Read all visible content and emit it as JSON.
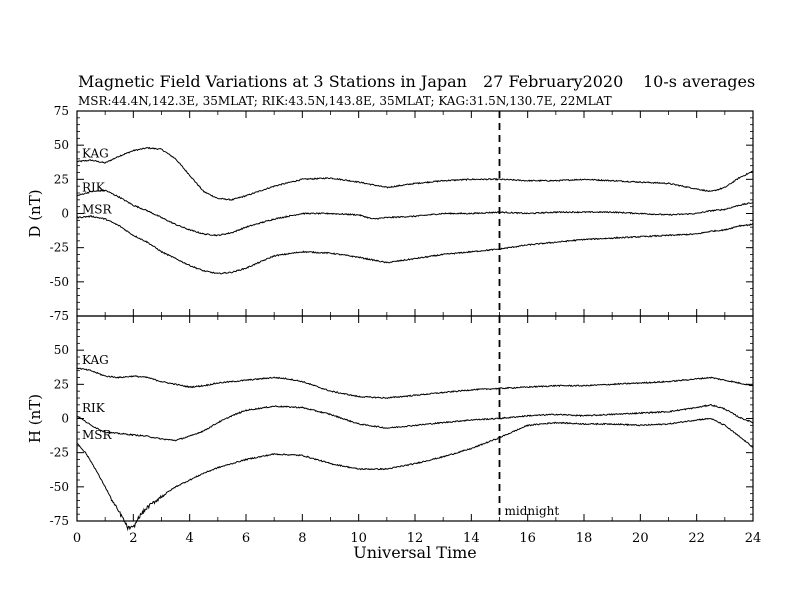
{
  "chart_data": {
    "type": "line",
    "title": "Magnetic Field Variations at 3 Stations in Japan",
    "date": "27 February2020",
    "averaging": "10-s averages",
    "subtitle": "MSR:44.4N,142.3E, 35MLAT;  RIK:43.5N,143.8E, 35MLAT;  KAG:31.5N,130.7E, 22MLAT",
    "xlabel": "Universal Time",
    "xlim": [
      0,
      24
    ],
    "x_ticks": [
      0,
      2,
      4,
      6,
      8,
      10,
      12,
      14,
      16,
      18,
      20,
      22,
      24
    ],
    "grid": false,
    "annotation": {
      "x": 15,
      "label": "midnight",
      "style": "dashed vertical line"
    },
    "panels": [
      {
        "name": "D",
        "ylabel": "D (nT)",
        "ylim": [
          -75,
          75
        ],
        "y_ticks": [
          75,
          50,
          25,
          0,
          -25,
          -50,
          -75
        ],
        "series": [
          {
            "name": "KAG",
            "x": [
              0,
              0.5,
              1,
              1.5,
              2,
              2.5,
              3,
              3.5,
              4,
              4.5,
              5,
              5.5,
              6,
              7,
              8,
              9,
              10,
              11,
              12,
              13,
              14,
              15,
              16,
              17,
              18,
              19,
              20,
              21,
              22,
              22.5,
              23,
              23.5,
              24
            ],
            "values": [
              38,
              39,
              37,
              42,
              46,
              48,
              47,
              40,
              28,
              16,
              11,
              10,
              13,
              20,
              25,
              26,
              23,
              19,
              22,
              24,
              25,
              25,
              24,
              24,
              25,
              24,
              23,
              22,
              18,
              16,
              19,
              26,
              31
            ]
          },
          {
            "name": "RIK",
            "x": [
              0,
              0.5,
              1,
              1.5,
              2,
              2.5,
              3,
              3.5,
              4,
              4.5,
              5,
              5.5,
              6,
              7,
              8,
              9,
              10,
              10.5,
              11,
              12,
              13,
              14,
              15,
              16,
              17,
              18,
              19,
              20,
              21,
              22,
              22.5,
              23,
              23.5,
              24
            ],
            "values": [
              13,
              16,
              17,
              12,
              6,
              2,
              -3,
              -8,
              -12,
              -15,
              -16,
              -14,
              -10,
              -4,
              0,
              0,
              -1,
              -4,
              -3,
              -2,
              0,
              0,
              1,
              0,
              1,
              1,
              1,
              0,
              -1,
              0,
              2,
              3,
              6,
              8
            ]
          },
          {
            "name": "MSR",
            "x": [
              0,
              0.5,
              1,
              1.5,
              2,
              2.5,
              3,
              3.5,
              4,
              4.5,
              5,
              5.5,
              6,
              7,
              8,
              9,
              10,
              10.5,
              11,
              12,
              13,
              14,
              15,
              16,
              17,
              18,
              19,
              20,
              21,
              22,
              22.5,
              23,
              23.5,
              24
            ],
            "values": [
              -3,
              -2,
              -4,
              -9,
              -16,
              -21,
              -28,
              -33,
              -38,
              -42,
              -44,
              -43,
              -40,
              -31,
              -28,
              -29,
              -32,
              -34,
              -36,
              -33,
              -30,
              -28,
              -26,
              -23,
              -21,
              -19,
              -18,
              -17,
              -16,
              -15,
              -13,
              -12,
              -9,
              -8
            ]
          }
        ]
      },
      {
        "name": "H",
        "ylabel": "H (nT)",
        "ylim": [
          -75,
          75
        ],
        "y_ticks": [
          75,
          50,
          25,
          0,
          -25,
          -50,
          -75
        ],
        "series": [
          {
            "name": "KAG",
            "x": [
              0,
              0.5,
              1,
              1.5,
              2,
              2.5,
              3,
              3.5,
              4,
              4.5,
              5,
              6,
              7,
              7.5,
              8,
              9,
              10,
              11,
              12,
              13,
              14,
              15,
              16,
              17,
              18,
              19,
              20,
              21,
              22,
              22.5,
              23,
              23.5,
              24
            ],
            "values": [
              37,
              35,
              31,
              30,
              31,
              30,
              27,
              25,
              23,
              24,
              26,
              28,
              30,
              29,
              27,
              20,
              16,
              15,
              17,
              19,
              21,
              22,
              23,
              24,
              24,
              25,
              26,
              27,
              29,
              30,
              28,
              26,
              24
            ]
          },
          {
            "name": "RIK",
            "x": [
              0,
              0.5,
              1,
              1.5,
              2,
              2.5,
              3,
              3.5,
              4,
              4.5,
              5,
              5.5,
              6,
              7,
              8,
              9,
              10,
              11,
              12,
              13,
              14,
              15,
              16,
              17,
              18,
              19,
              20,
              21,
              22,
              22.5,
              23,
              23.5,
              24
            ],
            "values": [
              2,
              -5,
              -10,
              -11,
              -12,
              -13,
              -15,
              -16,
              -13,
              -9,
              -3,
              2,
              6,
              9,
              8,
              3,
              -4,
              -7,
              -5,
              -3,
              -1,
              0,
              2,
              3,
              2,
              3,
              4,
              5,
              8,
              10,
              7,
              1,
              -3
            ]
          },
          {
            "name": "MSR",
            "x": [
              0,
              0.3,
              0.6,
              1,
              1.3,
              1.6,
              1.8,
              2,
              2.2,
              2.5,
              3,
              3.5,
              4,
              4.5,
              5,
              5.5,
              6,
              7,
              8,
              9,
              10,
              11,
              12,
              13,
              14,
              15,
              16,
              17,
              18,
              19,
              20,
              21,
              22,
              22.5,
              23,
              23.5,
              24
            ],
            "values": [
              -18,
              -25,
              -35,
              -50,
              -62,
              -72,
              -80,
              -80,
              -72,
              -65,
              -57,
              -50,
              -45,
              -40,
              -36,
              -33,
              -30,
              -26,
              -27,
              -33,
              -37,
              -37,
              -33,
              -28,
              -22,
              -14,
              -5,
              -3,
              -4,
              -4,
              -5,
              -4,
              -1,
              0,
              -5,
              -13,
              -21
            ]
          }
        ]
      }
    ]
  }
}
